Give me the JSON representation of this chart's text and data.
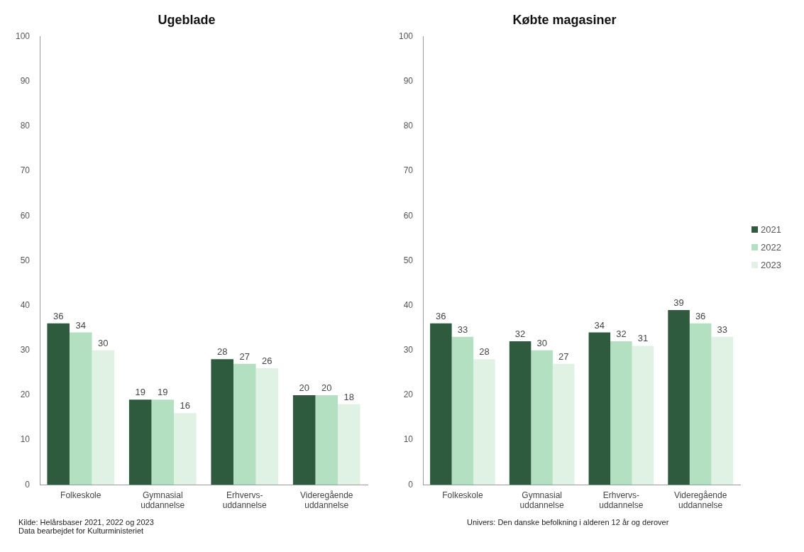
{
  "chart_data": [
    {
      "type": "bar",
      "title": "Ugeblade",
      "categories": [
        "Folkeskole",
        "Gymnasial uddannelse",
        "Erhvervs-uddannelse",
        "Videregående uddannelse"
      ],
      "series": [
        {
          "color": "#2e5b3e",
          "values": [
            36,
            19,
            28,
            20
          ]
        },
        {
          "color": "#b3e0c0",
          "values": [
            34,
            19,
            27,
            20
          ]
        },
        {
          "color": "#dff2e3",
          "values": [
            30,
            16,
            26,
            18
          ]
        }
      ],
      "ylim": [
        0,
        100
      ],
      "yticks": [
        0,
        10,
        20,
        30,
        40,
        50,
        60,
        70,
        80,
        90,
        100
      ],
      "grid": false,
      "legend": false,
      "data_labels": true,
      "annotations": [
        "Kilde: Helårsbaser 2021, 2022 og 2023",
        "Data bearbejdet for Kulturministeriet"
      ]
    },
    {
      "type": "bar",
      "title": "Købte magasiner",
      "categories": [
        "Folkeskole",
        "Gymnasial uddannelse",
        "Erhvervs-uddannelse",
        "Videregående uddannelse"
      ],
      "series": [
        {
          "name": "2021",
          "color": "#2e5b3e",
          "values": [
            36,
            32,
            34,
            39
          ]
        },
        {
          "name": "2022",
          "color": "#b3e0c0",
          "values": [
            33,
            30,
            32,
            36
          ]
        },
        {
          "name": "2023",
          "color": "#dff2e3",
          "values": [
            28,
            27,
            31,
            33
          ]
        }
      ],
      "ylim": [
        0,
        100
      ],
      "yticks": [
        0,
        10,
        20,
        30,
        40,
        50,
        60,
        70,
        80,
        90,
        100
      ],
      "grid": false,
      "legend": "right",
      "data_labels": true,
      "annotations": [
        "Univers: Den danske befolkning i alderen 12 år og derover"
      ]
    }
  ]
}
